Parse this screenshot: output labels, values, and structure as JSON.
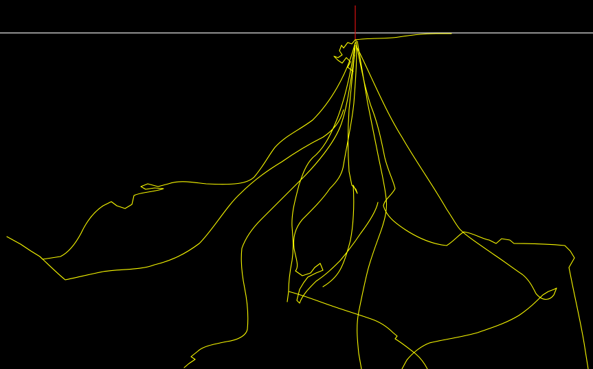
{
  "scene": {
    "background_color": "#000000",
    "baseline_color": "#e6e6e6",
    "origin_marker_color": "#e01010",
    "trace_color": "#ffff00",
    "trace_count": 12
  }
}
